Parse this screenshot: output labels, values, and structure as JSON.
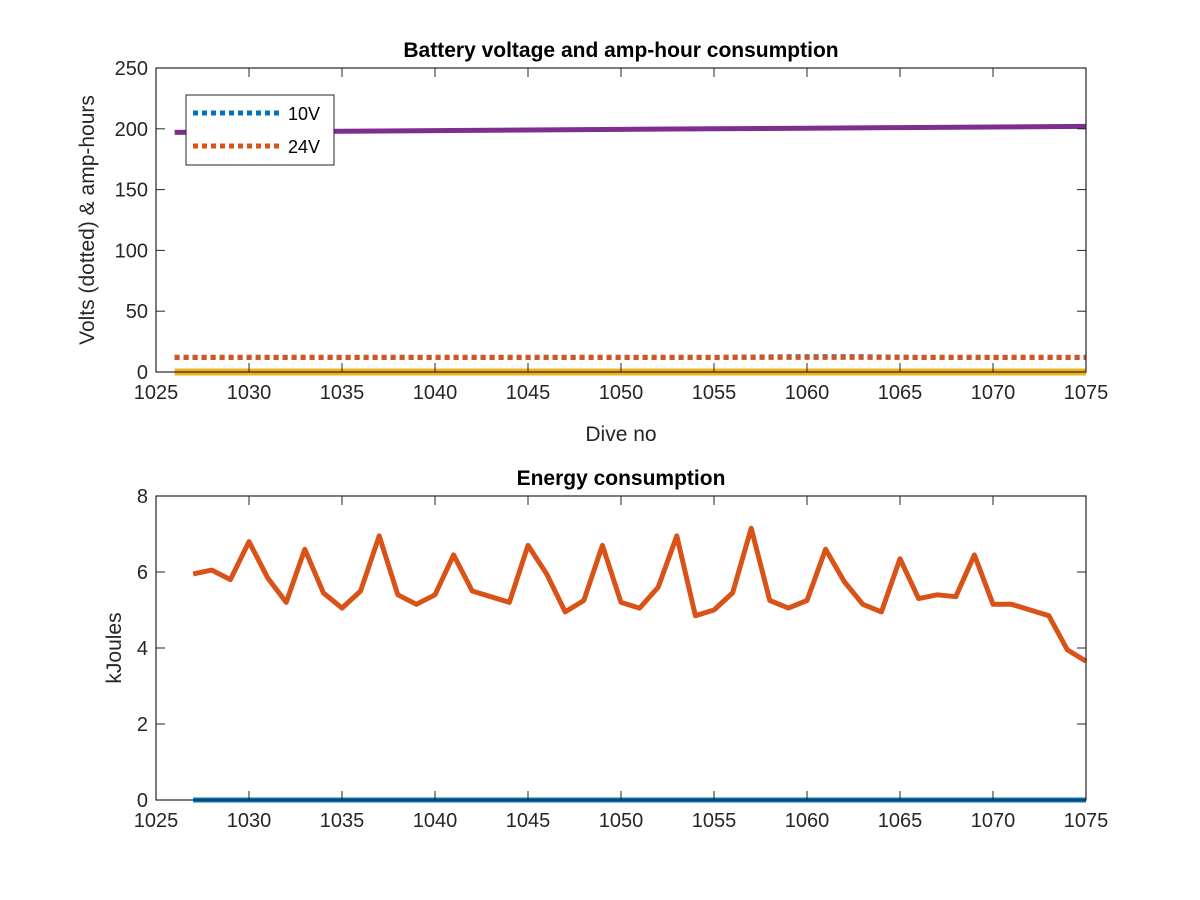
{
  "chart_data": [
    {
      "type": "line",
      "title": "Battery voltage and amp-hour consumption",
      "xlabel": "Dive no",
      "ylabel": "Volts (dotted) & amp-hours",
      "xlim": [
        1025,
        1075
      ],
      "ylim": [
        0,
        250
      ],
      "xticks": [
        1025,
        1030,
        1035,
        1040,
        1045,
        1050,
        1055,
        1060,
        1065,
        1070,
        1075
      ],
      "yticks": [
        0,
        50,
        100,
        150,
        200,
        250
      ],
      "grid": false,
      "legend_position": "top-left",
      "series": [
        {
          "name": "10V",
          "style": "dotted",
          "color": "#0072BD",
          "x": [
            1026,
            1035,
            1045,
            1055,
            1059,
            1063,
            1066,
            1070,
            1075
          ],
          "y": [
            12,
            12,
            12,
            12,
            12.5,
            12.5,
            12,
            12,
            12
          ]
        },
        {
          "name": "24V",
          "style": "dotted",
          "color": "#D95319",
          "x": [
            1026,
            1075
          ],
          "y": [
            12,
            12
          ]
        },
        {
          "style": "solid",
          "color": "#EDB120",
          "x": [
            1026,
            1075
          ],
          "y": [
            0,
            0
          ]
        },
        {
          "style": "solid",
          "color": "#7E2F8E",
          "x": [
            1026,
            1030,
            1035,
            1040,
            1045,
            1050,
            1055,
            1060,
            1065,
            1070,
            1075
          ],
          "y": [
            197,
            197.5,
            198,
            198.5,
            199,
            199.5,
            200,
            200.5,
            201,
            201.5,
            202
          ]
        }
      ],
      "legend": [
        "10V",
        "24V"
      ]
    },
    {
      "type": "line",
      "title": "Energy consumption",
      "xlabel": "",
      "ylabel": "kJoules",
      "xlim": [
        1025,
        1075
      ],
      "ylim": [
        0,
        8
      ],
      "xticks": [
        1025,
        1030,
        1035,
        1040,
        1045,
        1050,
        1055,
        1060,
        1065,
        1070,
        1075
      ],
      "yticks": [
        0,
        2,
        4,
        6,
        8
      ],
      "grid": false,
      "series": [
        {
          "style": "solid",
          "color": "#D95319",
          "x": [
            1027,
            1028,
            1029,
            1030,
            1031,
            1032,
            1033,
            1034,
            1035,
            1036,
            1037,
            1038,
            1039,
            1040,
            1041,
            1042,
            1043,
            1044,
            1045,
            1046,
            1047,
            1048,
            1049,
            1050,
            1051,
            1052,
            1053,
            1054,
            1055,
            1056,
            1057,
            1058,
            1059,
            1060,
            1061,
            1062,
            1063,
            1064,
            1065,
            1066,
            1067,
            1068,
            1069,
            1070,
            1071,
            1072,
            1073,
            1074,
            1075
          ],
          "y": [
            5.95,
            6.05,
            5.8,
            6.8,
            5.85,
            5.2,
            6.6,
            5.45,
            5.05,
            5.5,
            6.95,
            5.4,
            5.15,
            5.4,
            6.45,
            5.5,
            5.35,
            5.2,
            6.7,
            5.95,
            4.95,
            5.25,
            6.7,
            5.2,
            5.05,
            5.6,
            6.95,
            4.85,
            5.0,
            5.45,
            7.15,
            5.25,
            5.05,
            5.25,
            6.6,
            5.75,
            5.15,
            4.95,
            6.35,
            5.3,
            5.4,
            5.35,
            6.45,
            5.15,
            5.15,
            5.0,
            4.85,
            3.95,
            3.65
          ]
        },
        {
          "style": "solid",
          "color": "#0072BD",
          "x": [
            1027,
            1075
          ],
          "y": [
            0,
            0
          ]
        }
      ]
    }
  ]
}
